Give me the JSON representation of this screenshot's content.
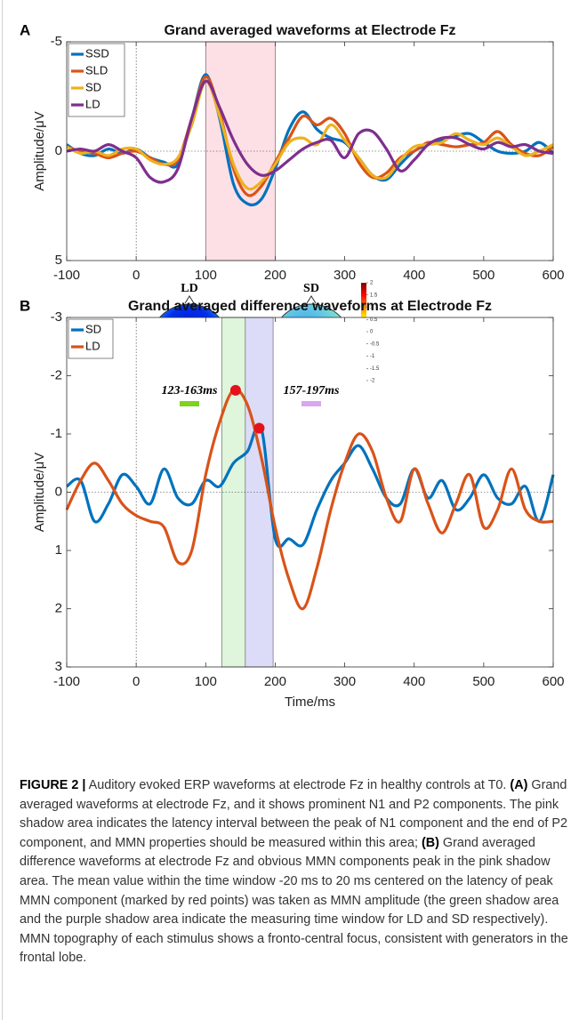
{
  "panel_labels": [
    "A",
    "B"
  ],
  "chart_data": [
    {
      "type": "line",
      "title": "Grand averaged waveforms at Electrode Fz",
      "ylabel": "Amplitude/μV",
      "x": [
        -100,
        -80,
        -60,
        -40,
        -20,
        0,
        20,
        40,
        60,
        80,
        100,
        120,
        140,
        160,
        180,
        200,
        220,
        240,
        260,
        280,
        300,
        320,
        340,
        360,
        380,
        400,
        420,
        440,
        460,
        480,
        500,
        520,
        540,
        560,
        580,
        600
      ],
      "series": [
        {
          "name": "SSD",
          "color": "#0072bd",
          "values": [
            -0.3,
            0.1,
            0.2,
            -0.1,
            0.1,
            -0.1,
            0.3,
            0.5,
            0.6,
            -1.5,
            -3.5,
            -1.5,
            1.5,
            2.4,
            2.2,
            0.8,
            -1.0,
            -1.8,
            -1.0,
            -0.6,
            -0.4,
            0.3,
            1.1,
            1.3,
            0.6,
            0.0,
            -0.3,
            -0.5,
            -0.7,
            -0.8,
            -0.4,
            0.0,
            0.1,
            0.0,
            -0.4,
            0.1
          ]
        },
        {
          "name": "SLD",
          "color": "#d95319",
          "values": [
            -0.2,
            0.0,
            0.1,
            0.3,
            0.1,
            0.0,
            0.3,
            0.6,
            0.4,
            -1.5,
            -3.4,
            -1.8,
            0.8,
            2.0,
            1.6,
            0.5,
            -0.6,
            -1.6,
            -1.2,
            -1.5,
            -0.8,
            0.5,
            1.2,
            1.0,
            0.3,
            0.0,
            -0.4,
            -0.3,
            -0.2,
            -0.3,
            -0.4,
            -0.9,
            -0.3,
            0.1,
            0.2,
            -0.2
          ]
        },
        {
          "name": "SD",
          "color": "#edb120",
          "values": [
            -0.2,
            0.1,
            0.0,
            0.2,
            -0.1,
            -0.1,
            0.4,
            0.6,
            0.3,
            -1.2,
            -3.2,
            -1.6,
            0.6,
            1.7,
            1.4,
            0.6,
            -0.4,
            -0.6,
            -0.3,
            -1.2,
            -0.5,
            0.3,
            1.1,
            1.2,
            0.4,
            -0.2,
            -0.3,
            -0.4,
            -0.8,
            -0.5,
            -0.3,
            -0.6,
            -0.2,
            0.2,
            0.0,
            -0.3
          ]
        },
        {
          "name": "LD",
          "color": "#7e2f8e",
          "values": [
            0.0,
            -0.1,
            0.0,
            -0.3,
            0.0,
            0.3,
            1.2,
            1.4,
            0.8,
            -1.5,
            -3.2,
            -2.0,
            -0.5,
            0.6,
            1.1,
            0.9,
            0.4,
            -0.1,
            -0.4,
            -0.5,
            0.3,
            -0.8,
            -0.9,
            -0.1,
            0.9,
            0.4,
            -0.3,
            -0.6,
            -0.6,
            -0.3,
            -0.1,
            -0.4,
            -0.2,
            -0.3,
            0.0,
            0.1
          ]
        }
      ],
      "shaded_regions": [
        {
          "xlim": [
            100,
            200
          ],
          "color": "#fde0e6"
        }
      ],
      "xlim": [
        -100,
        600
      ],
      "xticks": [
        -100,
        0,
        100,
        200,
        300,
        400,
        500,
        600
      ],
      "ylim": [
        -5,
        5
      ],
      "yticks": [
        -5,
        0,
        5
      ],
      "y_reversed": true,
      "legend": "upper left"
    },
    {
      "type": "line",
      "title": "Grand averaged difference waveforms at Electrode Fz",
      "ylabel": "Amplitude/μV",
      "xlabel": "Time/ms",
      "x": [
        -100,
        -80,
        -60,
        -40,
        -20,
        0,
        20,
        40,
        60,
        80,
        100,
        120,
        140,
        160,
        180,
        200,
        220,
        240,
        260,
        280,
        300,
        320,
        340,
        360,
        380,
        400,
        420,
        440,
        460,
        480,
        500,
        520,
        540,
        560,
        580,
        600
      ],
      "series": [
        {
          "name": "SD",
          "color": "#0072bd",
          "values": [
            -0.1,
            -0.2,
            0.5,
            0.2,
            -0.3,
            -0.1,
            0.2,
            -0.4,
            0.1,
            0.2,
            -0.2,
            -0.1,
            -0.5,
            -0.7,
            -1.1,
            0.8,
            0.8,
            0.9,
            0.3,
            -0.2,
            -0.5,
            -0.8,
            -0.4,
            0.1,
            0.2,
            -0.4,
            0.1,
            -0.2,
            0.3,
            0.1,
            -0.3,
            0.1,
            0.2,
            -0.1,
            0.5,
            -0.3
          ]
        },
        {
          "name": "LD",
          "color": "#d95319",
          "values": [
            0.3,
            -0.2,
            -0.5,
            -0.2,
            0.2,
            0.4,
            0.5,
            0.6,
            1.2,
            1.0,
            -0.3,
            -1.2,
            -1.75,
            -1.5,
            -0.6,
            0.6,
            1.5,
            2.0,
            1.3,
            0.3,
            -0.5,
            -1.0,
            -0.7,
            0.1,
            0.5,
            -0.4,
            0.2,
            0.7,
            0.2,
            -0.3,
            0.6,
            0.3,
            -0.4,
            0.3,
            0.5,
            0.5
          ]
        }
      ],
      "shaded_regions": [
        {
          "xlim": [
            123,
            163
          ],
          "color": "#dff5dc"
        },
        {
          "xlim": [
            157,
            197
          ],
          "color": "#dcdcf8"
        }
      ],
      "peaks": [
        {
          "x": 143,
          "y": -1.75,
          "color": "#e3121b"
        },
        {
          "x": 177,
          "y": -1.1,
          "color": "#e3121b"
        }
      ],
      "xlim": [
        -100,
        600
      ],
      "xticks": [
        -100,
        0,
        100,
        200,
        300,
        400,
        500,
        600
      ],
      "ylim": [
        -3,
        3
      ],
      "yticks": [
        -3,
        -2,
        -1,
        0,
        1,
        2,
        3
      ],
      "y_reversed": true,
      "legend": "upper left"
    }
  ],
  "topomaps": {
    "maps": [
      {
        "label": "LD",
        "window": "123-163ms",
        "window_color": "#7ed321"
      },
      {
        "label": "SD",
        "window": "157-197ms",
        "window_color": "#d9a6f2"
      }
    ],
    "colorbar": {
      "lim": [
        -2,
        2
      ],
      "ticks": [
        2,
        1.5,
        1,
        0.5,
        0,
        -0.5,
        -1,
        -1.5,
        -2
      ]
    }
  },
  "caption": {
    "label": "FIGURE 2 |",
    "text0": " Auditory evoked ERP waveforms at electrode Fz in healthy controls at T0. ",
    "a": "(A)",
    "text1": " Grand averaged waveforms at electrode Fz, and it shows prominent N1 and P2 components. The pink shadow area indicates the latency interval between the peak of N1 component and the end of P2 component, and MMN properties should be measured within this area; ",
    "b": "(B)",
    "text2": " Grand averaged difference waveforms at electrode Fz and obvious MMN components peak in the pink shadow area. The mean value within the time window -20 ms to 20 ms centered on the latency of peak MMN component (marked by red points) was taken as MMN amplitude (the green shadow area and the purple shadow area indicate the measuring time window for LD and SD respectively). MMN topography of each stimulus shows a fronto-central focus, consistent with generators in the frontal lobe."
  }
}
